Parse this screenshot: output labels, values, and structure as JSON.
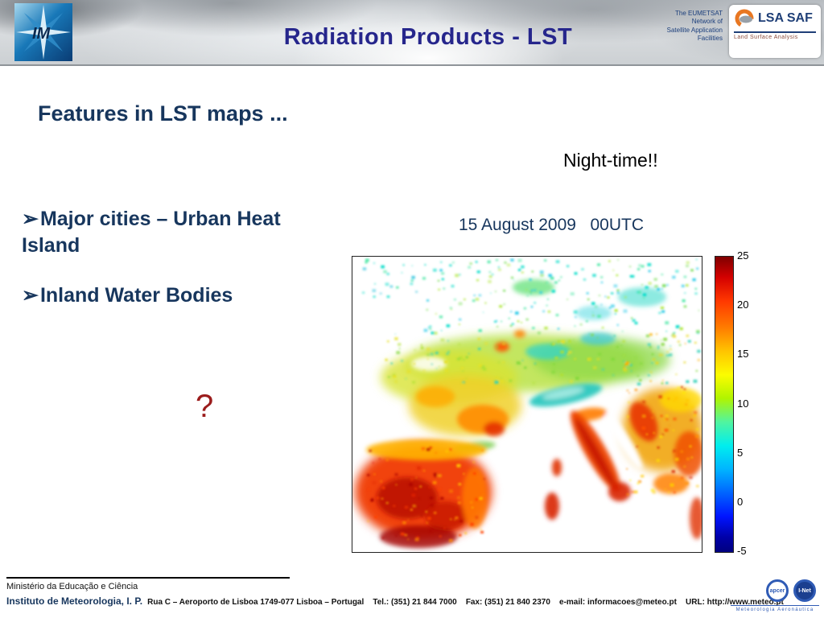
{
  "slide": {
    "title": "Radiation Products - LST"
  },
  "header": {
    "im_logo_text": "IM",
    "eumetsat_network": "The EUMETSAT\nNetwork of\nSatellite Application\nFacilities",
    "lsa_saf_name": "LSA SAF",
    "lsa_saf_subtitle": "Land Surface Analysis"
  },
  "content": {
    "heading": "Features in LST maps ...",
    "night_time": "Night-time!!",
    "datetime": "15 August 2009   00UTC",
    "bullet_char": "➢",
    "bullets": [
      "Major cities – Urban Heat Island",
      "Inland Water Bodies"
    ],
    "question_mark": "?"
  },
  "map": {
    "colorbar_ticks": [
      "25",
      "20",
      "15",
      "10",
      "5",
      "0",
      "-5"
    ]
  },
  "footer": {
    "ministry": "Ministério da Educação e Ciência",
    "institute": "Instituto de Meteorologia, I. P.",
    "details": "Rua C – Aeroporto de Lisboa 1749-077 Lisboa – Portugal    Tel.: (351) 21 844 7000    Fax: (351) 21 840 2370    e-mail: informacoes@meteo.pt    URL: http://www.meteo.pt",
    "cert_1": "apcer",
    "cert_2": "I-Net",
    "aeronautica": "Meteorologia Aeronáutica"
  },
  "colors": {
    "title_blue": "#26268C",
    "heading_navy": "#17365D",
    "question_red": "#9B1C1C",
    "colorbar_max": "#7f0000",
    "colorbar_min": "#00007f"
  }
}
